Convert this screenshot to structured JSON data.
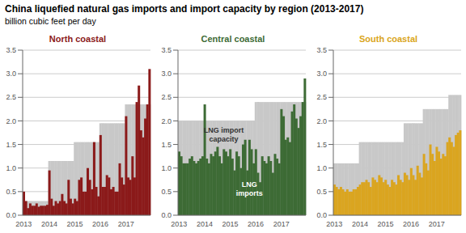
{
  "title": "China liquefied natural gas imports and import capacity by region (2013-2017)",
  "subtitle": "billion cubic feet per day",
  "chart_data": [
    {
      "type": "bar",
      "title": "North coastal",
      "grid": true,
      "ylim": [
        0,
        3.5
      ],
      "yticks": [
        {
          "value": 0,
          "label": "0.0"
        },
        0.5,
        {
          "value": 1,
          "label": "1.0"
        },
        1.5,
        {
          "value": 2,
          "label": "2.0"
        },
        2.5,
        {
          "value": 3,
          "label": "3.0"
        },
        3.5
      ],
      "categories": [
        "2013",
        null,
        null,
        null,
        null,
        null,
        null,
        null,
        null,
        null,
        null,
        null,
        "2014",
        null,
        null,
        null,
        null,
        null,
        null,
        null,
        null,
        null,
        null,
        null,
        "2015",
        null,
        null,
        null,
        null,
        null,
        null,
        null,
        null,
        null,
        null,
        null,
        "2016",
        null,
        null,
        null,
        null,
        null,
        null,
        null,
        null,
        null,
        null,
        null,
        "2017",
        null,
        null,
        null,
        null,
        null,
        null,
        null,
        null,
        null,
        null,
        null
      ],
      "series": [
        {
          "color": "#C8C8C8",
          "values": [
            0.3,
            0.3,
            0.3,
            0.3,
            0.3,
            0.3,
            0.3,
            0.3,
            0.3,
            0.3,
            0.3,
            0.3,
            1.15,
            1.15,
            1.15,
            1.15,
            1.15,
            1.15,
            1.15,
            1.15,
            1.15,
            1.15,
            1.15,
            1.15,
            1.55,
            1.55,
            1.55,
            1.55,
            1.55,
            1.55,
            1.55,
            1.55,
            1.55,
            1.55,
            1.55,
            1.55,
            1.95,
            1.95,
            1.95,
            1.95,
            1.95,
            1.95,
            1.95,
            1.95,
            1.95,
            1.95,
            1.95,
            1.95,
            2.35,
            2.35,
            2.35,
            2.35,
            2.35,
            2.35,
            2.35,
            2.35,
            2.35,
            2.35,
            2.35,
            2.35
          ]
        },
        {
          "color": "#8B1A1A",
          "values": [
            0.5,
            0.3,
            0.15,
            0.25,
            0.2,
            0.2,
            0.25,
            0.18,
            0.2,
            0.2,
            0.2,
            0.22,
            0.95,
            0.35,
            0.2,
            0.3,
            0.25,
            0.3,
            0.45,
            0.3,
            0.25,
            0.75,
            0.35,
            0.25,
            0.35,
            0.3,
            0.75,
            0.8,
            0.5,
            0.5,
            1.0,
            0.75,
            0.55,
            1.55,
            0.6,
            0.4,
            1.7,
            0.6,
            0.6,
            0.85,
            0.8,
            0.55,
            0.6,
            0.5,
            0.5,
            1.1,
            0.8,
            0.65,
            2.1,
            0.8,
            0.75,
            1.25,
            0.8,
            2.4,
            2.75,
            1.8,
            1.65,
            2.05,
            2.35,
            3.1
          ]
        }
      ]
    },
    {
      "type": "bar",
      "title": "Central coastal",
      "grid": true,
      "ylim": [
        0,
        3.5
      ],
      "yticks": [
        {
          "value": 0,
          "label": "0.0"
        },
        0.5,
        {
          "value": 1,
          "label": "1.0"
        },
        1.5,
        {
          "value": 2,
          "label": "2.0"
        },
        2.5,
        {
          "value": 3,
          "label": "3.0"
        },
        3.5
      ],
      "categories": [
        "2013",
        null,
        null,
        null,
        null,
        null,
        null,
        null,
        null,
        null,
        null,
        null,
        "2014",
        null,
        null,
        null,
        null,
        null,
        null,
        null,
        null,
        null,
        null,
        null,
        "2015",
        null,
        null,
        null,
        null,
        null,
        null,
        null,
        null,
        null,
        null,
        null,
        "2016",
        null,
        null,
        null,
        null,
        null,
        null,
        null,
        null,
        null,
        null,
        null,
        "2017",
        null,
        null,
        null,
        null,
        null,
        null,
        null,
        null,
        null,
        null,
        null
      ],
      "series": [
        {
          "color": "#C8C8C8",
          "values": [
            2.0,
            2.0,
            2.0,
            2.0,
            2.0,
            2.0,
            2.0,
            2.0,
            2.0,
            2.0,
            2.0,
            2.0,
            2.0,
            2.0,
            2.0,
            2.0,
            2.0,
            2.0,
            2.0,
            2.0,
            2.0,
            2.0,
            2.0,
            2.0,
            2.0,
            2.0,
            2.0,
            2.0,
            2.0,
            2.0,
            2.0,
            2.0,
            2.0,
            2.0,
            2.0,
            2.0,
            2.4,
            2.4,
            2.4,
            2.4,
            2.4,
            2.4,
            2.4,
            2.4,
            2.4,
            2.4,
            2.4,
            2.4,
            2.4,
            2.4,
            2.4,
            2.4,
            2.4,
            2.4,
            2.4,
            2.4,
            2.4,
            2.4,
            2.4,
            2.4
          ]
        },
        {
          "color": "#3D6B35",
          "values": [
            1.35,
            1.25,
            1.1,
            1.1,
            1.1,
            1.2,
            1.25,
            1.15,
            1.1,
            1.15,
            1.2,
            1.25,
            2.35,
            1.2,
            1.1,
            1.3,
            1.25,
            1.35,
            1.45,
            1.25,
            1.1,
            1.4,
            1.35,
            1.25,
            1.4,
            1.2,
            0.95,
            1.35,
            1.25,
            1.0,
            1.5,
            1.6,
            0.95,
            1.6,
            1.4,
            1.1,
            1.4,
            0.9,
            0.7,
            1.25,
            1.15,
            1.1,
            1.25,
            1.15,
            0.9,
            1.3,
            1.2,
            1.1,
            2.25,
            2.1,
            1.6,
            1.65,
            1.55,
            2.2,
            2.35,
            2.05,
            1.85,
            2.1,
            2.4,
            2.9
          ]
        }
      ],
      "annotations": [
        "LNG import\ncapacity",
        "LNG\nimports"
      ]
    },
    {
      "type": "bar",
      "title": "South coastal",
      "grid": true,
      "ylim": [
        0,
        3.5
      ],
      "yticks": [
        {
          "value": 0,
          "label": "0.0"
        },
        0.5,
        {
          "value": 1,
          "label": "1.0"
        },
        1.5,
        {
          "value": 2,
          "label": "2.0"
        },
        2.5,
        {
          "value": 3,
          "label": "3.0"
        },
        3.5
      ],
      "categories": [
        "2013",
        null,
        null,
        null,
        null,
        null,
        null,
        null,
        null,
        null,
        null,
        null,
        "2014",
        null,
        null,
        null,
        null,
        null,
        null,
        null,
        null,
        null,
        null,
        null,
        "2015",
        null,
        null,
        null,
        null,
        null,
        null,
        null,
        null,
        null,
        null,
        null,
        "2016",
        null,
        null,
        null,
        null,
        null,
        null,
        null,
        null,
        null,
        null,
        null,
        "2017",
        null,
        null,
        null,
        null,
        null,
        null,
        null,
        null,
        null,
        null,
        null
      ],
      "series": [
        {
          "color": "#C8C8C8",
          "values": [
            1.1,
            1.1,
            1.1,
            1.1,
            1.1,
            1.1,
            1.1,
            1.1,
            1.1,
            1.1,
            1.1,
            1.1,
            1.55,
            1.55,
            1.55,
            1.55,
            1.55,
            1.55,
            1.55,
            1.55,
            1.55,
            1.55,
            1.55,
            1.55,
            1.55,
            1.55,
            1.55,
            1.55,
            1.55,
            1.55,
            1.55,
            1.55,
            1.55,
            1.95,
            1.95,
            1.95,
            1.95,
            1.95,
            1.95,
            1.95,
            1.95,
            1.95,
            2.25,
            2.25,
            2.25,
            2.25,
            2.25,
            2.25,
            2.25,
            2.25,
            2.25,
            2.25,
            2.25,
            2.25,
            2.55,
            2.55,
            2.55,
            2.55,
            2.55,
            2.55
          ]
        },
        {
          "color": "#DAA520",
          "values": [
            0.65,
            0.6,
            0.55,
            0.6,
            0.55,
            0.5,
            0.55,
            0.5,
            0.5,
            0.55,
            0.55,
            0.6,
            0.65,
            0.7,
            0.7,
            0.75,
            0.7,
            0.6,
            0.8,
            0.75,
            0.7,
            0.85,
            0.8,
            0.7,
            0.75,
            0.65,
            0.6,
            0.75,
            0.7,
            0.65,
            0.85,
            0.75,
            0.7,
            0.9,
            0.85,
            0.75,
            1.0,
            0.85,
            0.75,
            1.05,
            0.9,
            0.8,
            1.3,
            1.1,
            0.95,
            1.5,
            1.3,
            1.15,
            1.45,
            1.35,
            1.2,
            1.3,
            1.25,
            1.55,
            1.65,
            1.55,
            1.45,
            1.7,
            1.75,
            1.8
          ]
        }
      ]
    }
  ]
}
